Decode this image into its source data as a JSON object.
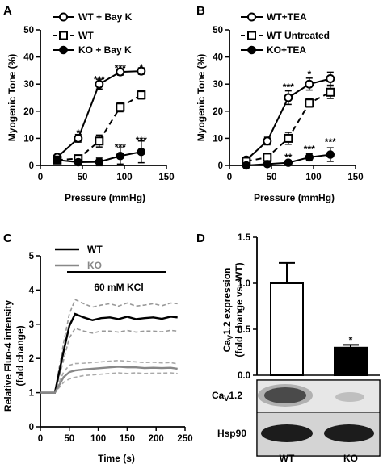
{
  "chart_data": [
    {
      "panel": "A",
      "type": "line",
      "xlabel": "Pressure (mmHg)",
      "ylabel": "Myogenic Tone (%)",
      "xlim": [
        0,
        150
      ],
      "ylim": [
        0,
        50
      ],
      "xticks": [
        "0",
        "50",
        "100",
        "150"
      ],
      "yticks": [
        "0",
        "10",
        "20",
        "30",
        "40",
        "50"
      ],
      "x": [
        20,
        45,
        70,
        95,
        120
      ],
      "legend_position": "top-left",
      "series": [
        {
          "name": "WT + Bay K",
          "marker": "open-circle",
          "line": "solid",
          "values": [
            3,
            10,
            30,
            34.5,
            34.8
          ],
          "errors": [
            0.7,
            1.4,
            1.8,
            1.2,
            1.2
          ]
        },
        {
          "name": "WT",
          "marker": "open-square",
          "line": "dashed",
          "values": [
            2,
            2.5,
            9,
            21.5,
            26
          ],
          "errors": [
            0.5,
            0.8,
            2.2,
            1.7,
            1.5
          ]
        },
        {
          "name": "KO + Bay K",
          "marker": "filled-circle",
          "line": "solid",
          "values": [
            2,
            1.2,
            1.3,
            3.5,
            5
          ],
          "errors": [
            0.5,
            0.8,
            1.4,
            3,
            4
          ]
        }
      ],
      "significance": [
        {
          "x": 45,
          "y": 12.5,
          "label": "*"
        },
        {
          "x": 70,
          "y": 32.3,
          "label": "***"
        },
        {
          "x": 95,
          "y": 36.5,
          "label": "***"
        },
        {
          "x": 120,
          "y": 36.8,
          "label": "*"
        },
        {
          "x": 95,
          "y": 7.3,
          "label": "***"
        },
        {
          "x": 120,
          "y": 9.8,
          "label": "***"
        }
      ]
    },
    {
      "panel": "B",
      "type": "line",
      "xlabel": "Pressure (mmHg)",
      "ylabel": "Myogenic Tone (%)",
      "xlim": [
        0,
        150
      ],
      "ylim": [
        0,
        50
      ],
      "xticks": [
        "0",
        "50",
        "100",
        "150"
      ],
      "yticks": [
        "0",
        "10",
        "20",
        "30",
        "40",
        "50"
      ],
      "x": [
        20,
        45,
        70,
        95,
        120
      ],
      "legend_position": "top-left",
      "series": [
        {
          "name": "WT+TEA",
          "marker": "open-circle",
          "line": "solid",
          "values": [
            2,
            9,
            25,
            30,
            32
          ],
          "errors": [
            0.5,
            1.4,
            2.5,
            2.2,
            2.4
          ]
        },
        {
          "name": "WT Untreated",
          "marker": "open-square",
          "line": "dashed",
          "values": [
            1.5,
            3,
            10,
            23,
            27
          ],
          "errors": [
            0.5,
            0.9,
            2.2,
            1.5,
            2.3
          ]
        },
        {
          "name": "KO+TEA",
          "marker": "filled-circle",
          "line": "solid",
          "values": [
            0,
            0.5,
            1,
            3,
            4
          ],
          "errors": [
            0.3,
            0.5,
            0.8,
            1.3,
            2.5
          ]
        }
      ],
      "significance": [
        {
          "x": 70,
          "y": 29.5,
          "label": "***"
        },
        {
          "x": 95,
          "y": 34.2,
          "label": "*"
        },
        {
          "x": 70,
          "y": 3.5,
          "label": "**"
        },
        {
          "x": 95,
          "y": 6.5,
          "label": "***"
        },
        {
          "x": 120,
          "y": 9.2,
          "label": "***"
        }
      ]
    },
    {
      "panel": "C",
      "type": "line",
      "xlabel": "Time (s)",
      "ylabel": "Relative Fluo-4 intensity\n(fold change)",
      "xlim": [
        0,
        250
      ],
      "ylim": [
        0,
        5
      ],
      "xticks": [
        "0",
        "50",
        "100",
        "150",
        "200",
        "250"
      ],
      "yticks": [
        "0",
        "1",
        "2",
        "3",
        "4",
        "5"
      ],
      "annotation": "60 mM KCl",
      "annotation_range": [
        25,
        237
      ],
      "legend_position": "top-left",
      "x": [
        0,
        25,
        30,
        40,
        50,
        60,
        75,
        90,
        105,
        120,
        135,
        150,
        165,
        180,
        195,
        210,
        225,
        237
      ],
      "series": [
        {
          "name": "WT",
          "color": "#000000",
          "values": [
            1,
            1,
            1.4,
            2.2,
            2.95,
            3.3,
            3.2,
            3.12,
            3.18,
            3.2,
            3.15,
            3.22,
            3.15,
            3.18,
            3.2,
            3.16,
            3.22,
            3.2
          ],
          "sem": [
            0,
            0,
            0.1,
            0.25,
            0.35,
            0.42,
            0.4,
            0.38,
            0.38,
            0.4,
            0.38,
            0.4,
            0.38,
            0.38,
            0.4,
            0.38,
            0.4,
            0.4
          ]
        },
        {
          "name": "KO",
          "color": "#888888",
          "values": [
            1,
            1,
            1.15,
            1.45,
            1.6,
            1.65,
            1.68,
            1.7,
            1.72,
            1.74,
            1.76,
            1.74,
            1.74,
            1.72,
            1.73,
            1.72,
            1.73,
            1.7
          ],
          "sem": [
            0,
            0,
            0.05,
            0.15,
            0.2,
            0.2,
            0.18,
            0.18,
            0.18,
            0.18,
            0.18,
            0.18,
            0.16,
            0.16,
            0.16,
            0.15,
            0.15,
            0.14
          ]
        }
      ]
    },
    {
      "panel": "D",
      "type": "bar",
      "ylabel": "CaV1.2 expression\n(fold change vs. WT)",
      "ylim": [
        0,
        1.5
      ],
      "yticks": [
        "0.0",
        "0.5",
        "1.0",
        "1.5"
      ],
      "categories": [
        "WT",
        "KO"
      ],
      "values": [
        1.0,
        0.3
      ],
      "errors": [
        0.22,
        0.03
      ],
      "fills": [
        "#ffffff",
        "#000000"
      ],
      "significance": [
        {
          "category": "KO",
          "label": "*"
        }
      ],
      "blot_labels": [
        "CaV1.2",
        "Hsp90"
      ]
    }
  ],
  "panel_labels": {
    "a": "A",
    "b": "B",
    "c": "C",
    "d": "D"
  },
  "legend_c": {
    "wt": "WT",
    "ko": "KO"
  },
  "annotation_c": "60 mM KCl",
  "xlabels": {
    "a": "Pressure (mmHg)",
    "b": "Pressure (mmHg)",
    "c": "Time (s)"
  },
  "ylabels": {
    "a": "Myogenic Tone (%)",
    "b": "Myogenic Tone (%)",
    "c_line1": "Relative Fluo-4 intensity",
    "c_line2": "(fold change)",
    "d_line1": "Ca",
    "d_sub": "V",
    "d_rest": "1.2 expression",
    "d_line2": "(fold change vs. WT)"
  },
  "blot": {
    "cav_label_main": "Ca",
    "cav_label_sub": "V",
    "cav_label_rest": "1.2",
    "hsp_label": "Hsp90"
  },
  "d_categories": {
    "wt": "WT",
    "ko": "KO"
  },
  "d_sig": "*",
  "legend_a": [
    "WT + Bay K",
    "WT",
    "KO + Bay K"
  ],
  "legend_b": [
    "WT+TEA",
    "WT Untreated",
    "KO+TEA"
  ]
}
